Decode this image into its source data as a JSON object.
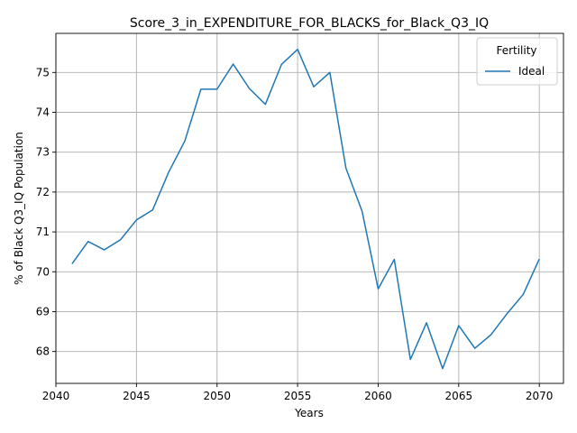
{
  "chart_data": {
    "type": "line",
    "title": "Score_3_in_EXPENDITURE_FOR_BLACKS_for_Black_Q3_IQ",
    "xlabel": "Years",
    "ylabel": "% of Black Q3_IQ Population",
    "xlim": [
      2040,
      2071.5
    ],
    "ylim": [
      67.2,
      75.98
    ],
    "xticks": [
      2040,
      2045,
      2050,
      2055,
      2060,
      2065,
      2070
    ],
    "yticks": [
      68,
      69,
      70,
      71,
      72,
      73,
      74,
      75
    ],
    "grid": true,
    "legend": {
      "title": "Fertility",
      "position": "top-right"
    },
    "series": [
      {
        "name": "Ideal",
        "color": "#1f77b4",
        "x": [
          2041,
          2042,
          2043,
          2044,
          2045,
          2046,
          2047,
          2048,
          2049,
          2050,
          2051,
          2052,
          2053,
          2054,
          2055,
          2056,
          2057,
          2058,
          2059,
          2060,
          2061,
          2062,
          2063,
          2064,
          2065,
          2066,
          2067,
          2068,
          2069,
          2070
        ],
        "y": [
          70.2,
          70.76,
          70.55,
          70.8,
          71.3,
          71.55,
          72.5,
          73.28,
          74.58,
          74.58,
          75.21,
          74.6,
          74.2,
          75.2,
          75.58,
          74.64,
          75.0,
          72.6,
          71.52,
          69.57,
          70.31,
          67.8,
          68.72,
          67.57,
          68.65,
          68.08,
          68.42,
          68.95,
          69.43,
          70.32
        ]
      }
    ]
  }
}
